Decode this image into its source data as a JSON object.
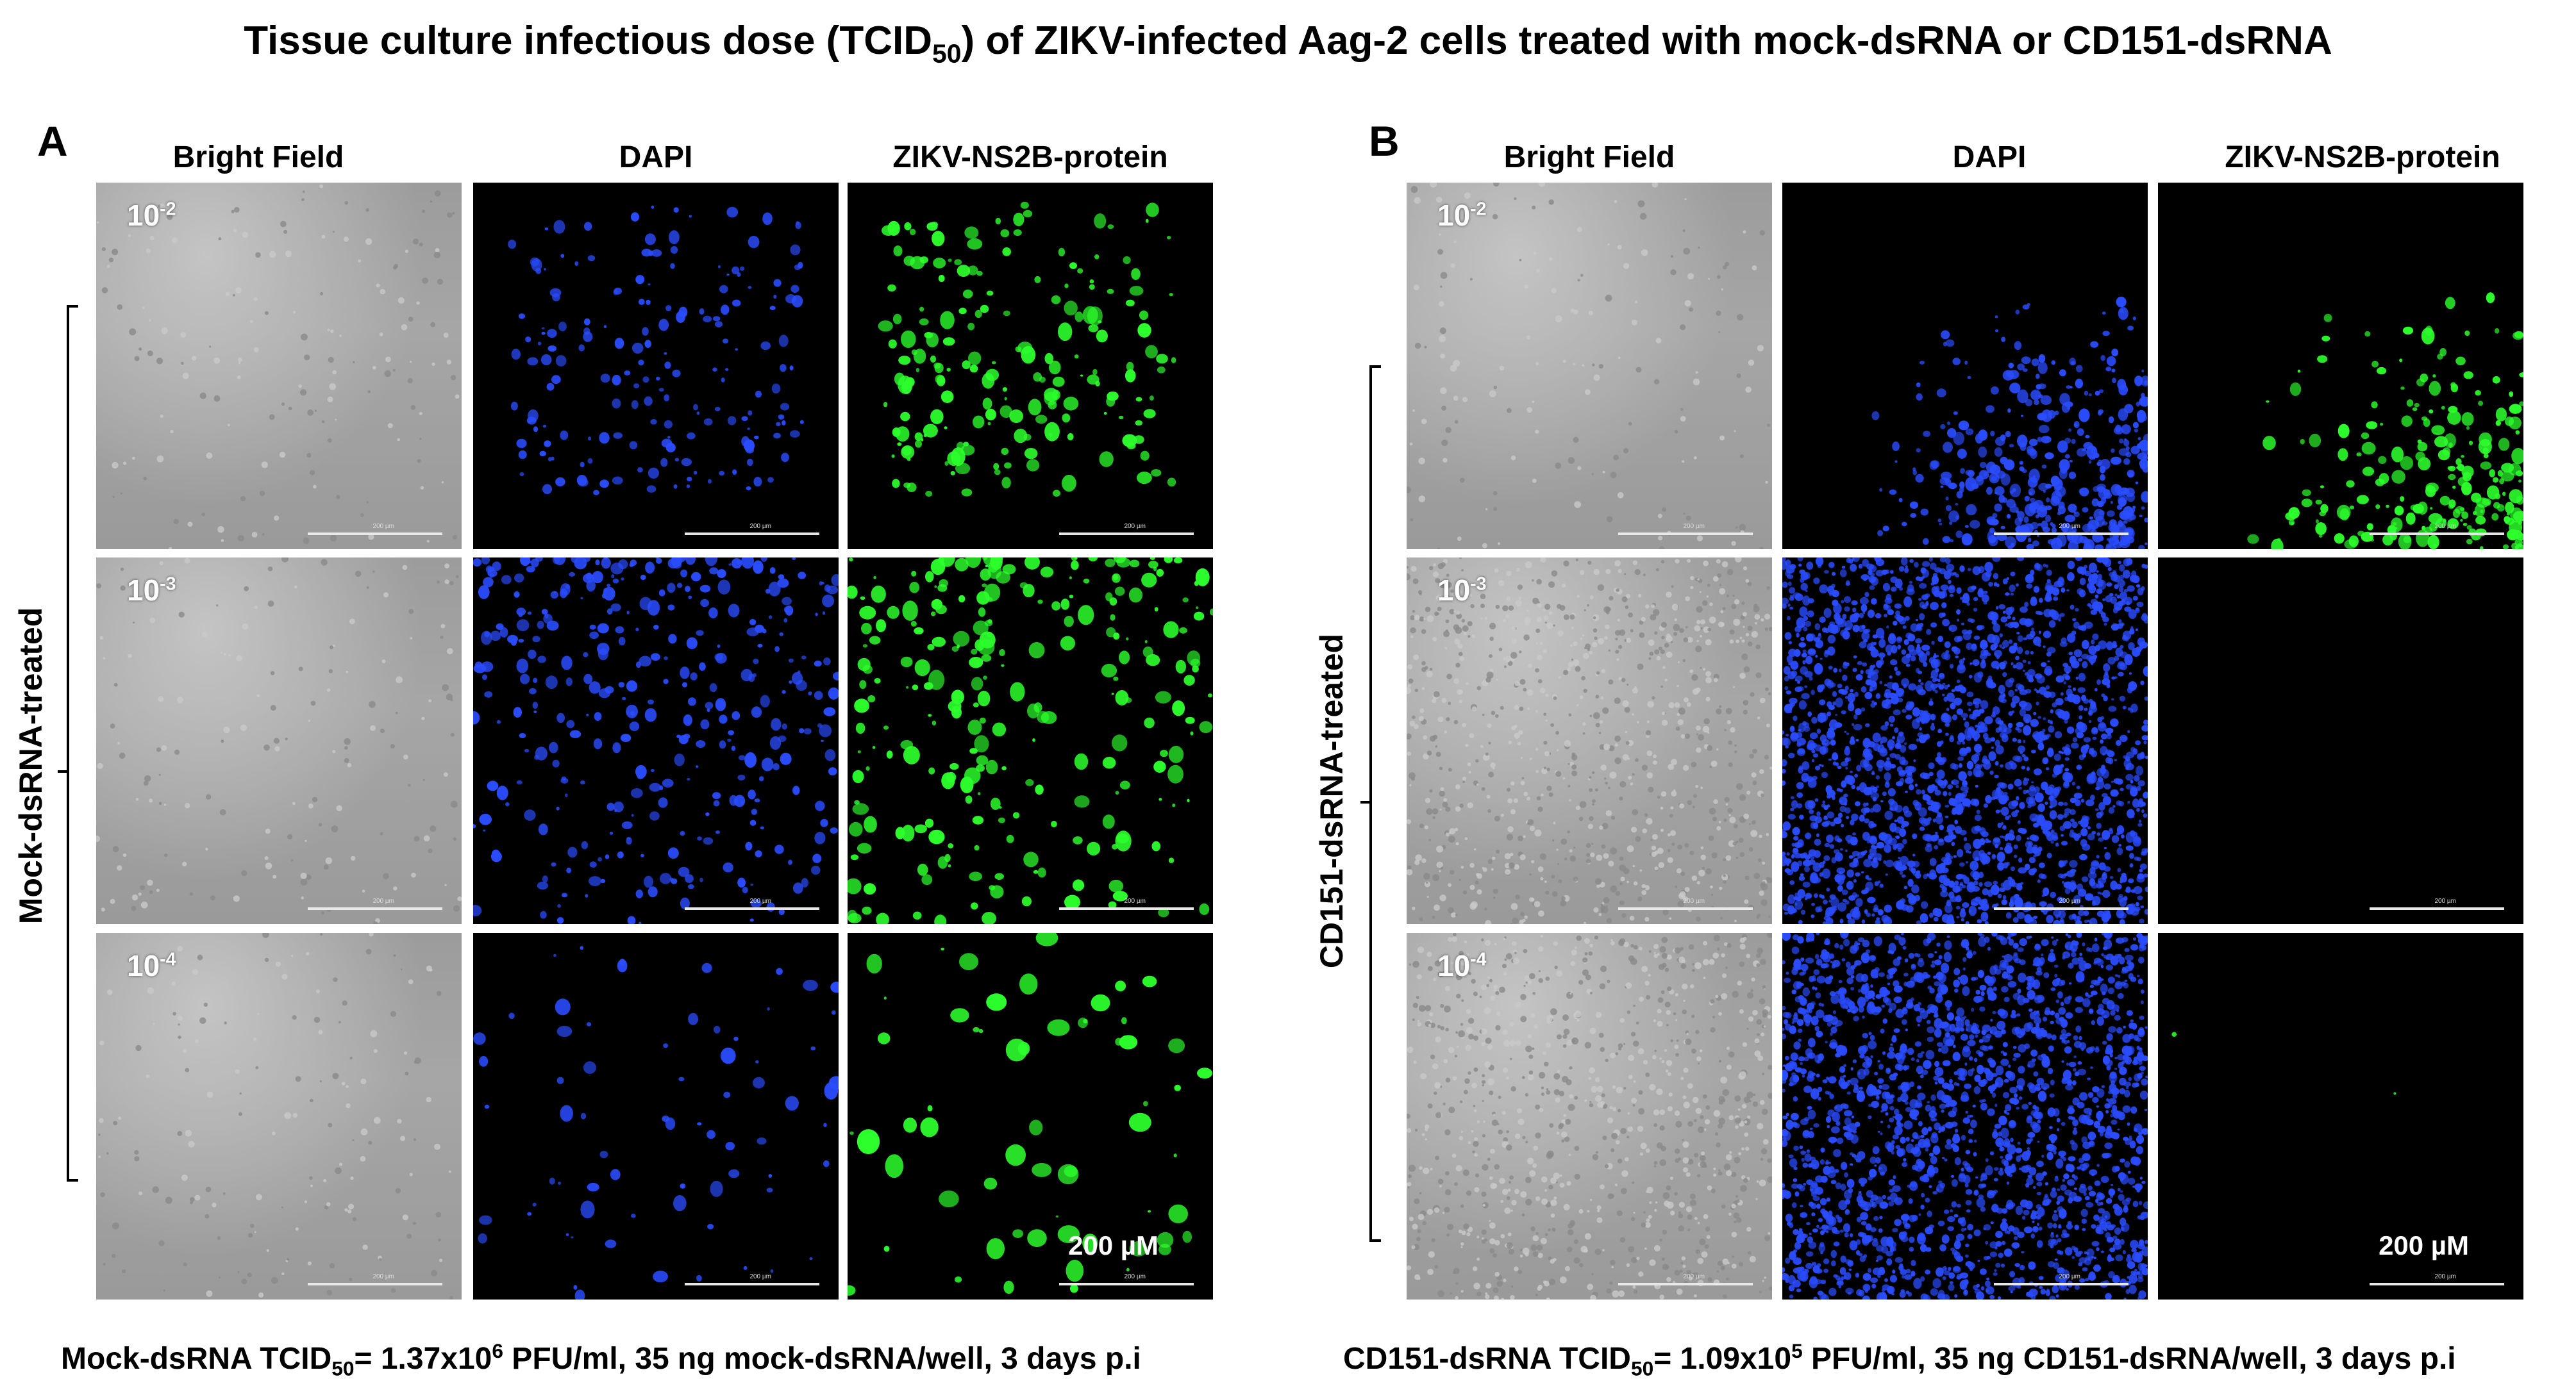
{
  "figure": {
    "title_pre": "Tissue culture infectious dose (TCID",
    "title_sub": "50",
    "title_post": ") of ZIKV-infected Aag-2 cells treated with mock-dsRNA or CD151-dsRNA"
  },
  "panels": [
    {
      "letter": "A",
      "group_label": "Mock-dsRNA-treated",
      "columns": [
        "Bright Field",
        "DAPI",
        "ZIKV-NS2B-protein"
      ],
      "rows": [
        {
          "base": "10",
          "exp": "-2"
        },
        {
          "base": "10",
          "exp": "-3"
        },
        {
          "base": "10",
          "exp": "-4"
        }
      ],
      "scale_label": "200 µM",
      "small_scale_text": "200 µm",
      "footer": {
        "pre": "Mock-dsRNA TCID",
        "sub": "50",
        "mid": "= 1.37x10",
        "sup": "6",
        "post": " PFU/ml, 35 ng mock-dsRNA/well, 3 days p.i"
      }
    },
    {
      "letter": "B",
      "group_label": "CD151-dsRNA-treated",
      "columns": [
        "Bright Field",
        "DAPI",
        "ZIKV-NS2B-protein"
      ],
      "rows": [
        {
          "base": "10",
          "exp": "-2"
        },
        {
          "base": "10",
          "exp": "-3"
        },
        {
          "base": "10",
          "exp": "-4"
        }
      ],
      "scale_label": "200 µM",
      "small_scale_text": "200 µm",
      "footer": {
        "pre": "CD151-dsRNA TCID",
        "sub": "50",
        "mid": "= 1.09x10",
        "sup": "5",
        "post": " PFU/ml, 35 ng CD151-dsRNA/well, 3 days p.i"
      }
    }
  ],
  "colors": {
    "dapi": "#2a4cff",
    "ns2b": "#2cff2c",
    "bright_field": "#a3a3a3"
  }
}
